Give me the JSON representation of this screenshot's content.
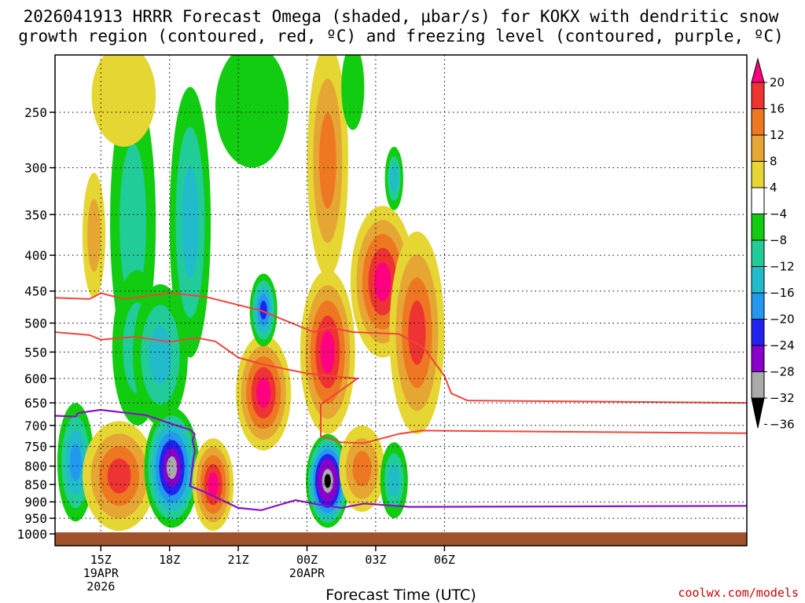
{
  "title_line1": "2026041913 HRRR Forecast Omega (shaded, μbar/s) for KOKX with dendritic snow",
  "title_line2": "growth region (contoured, red, ºC) and freezing level (contoured, purple, ºC)",
  "xlabel": "Forecast Time (UTC)",
  "credit": "coolwx.com/models",
  "colors": {
    "dendritic": "#f0443a",
    "freezing": "#8b10c8",
    "ground": "#a0522d"
  },
  "chart_data": {
    "type": "heatmap",
    "y_axis": {
      "label": "",
      "scale": "log-pressure",
      "units": "mb",
      "range": [
        1000,
        200
      ],
      "ticks": [
        250,
        300,
        350,
        400,
        450,
        500,
        550,
        600,
        650,
        700,
        750,
        800,
        850,
        900,
        950,
        1000
      ],
      "grid": true
    },
    "x_axis": {
      "label": "Forecast Time (UTC)",
      "range_hours_utc": [
        13.0,
        43.2
      ],
      "ticks": [
        {
          "hour": 15,
          "label": "15Z",
          "sub1": "19APR",
          "sub2": "2026"
        },
        {
          "hour": 18,
          "label": "18Z",
          "sub1": "",
          "sub2": ""
        },
        {
          "hour": 21,
          "label": "21Z",
          "sub1": "",
          "sub2": ""
        },
        {
          "hour": 24,
          "label": "00Z",
          "sub1": "20APR",
          "sub2": ""
        },
        {
          "hour": 27,
          "label": "03Z",
          "sub1": "",
          "sub2": ""
        },
        {
          "hour": 30,
          "label": "06Z",
          "sub1": "",
          "sub2": ""
        }
      ],
      "grid": true
    },
    "colorbar": {
      "labels": [
        "20",
        "16",
        "12",
        "8",
        "4",
        "−4",
        "−8",
        "−12",
        "−16",
        "−20",
        "−24",
        "−28",
        "−32",
        "−36"
      ],
      "colors": [
        "#ff0080",
        "#ee3333",
        "#ee7722",
        "#e6a633",
        "#e6d633",
        "#ffffff",
        "#11cc11",
        "#22cc99",
        "#22bbcc",
        "#2299ee",
        "#2222ee",
        "#8800cc",
        "#aaaaaa",
        "#000000"
      ]
    },
    "omega_blobs": [
      {
        "x": 13.9,
        "p": 835,
        "rx": 0.8,
        "hp": [
          650,
          960
        ],
        "levels": [
          -4,
          -8,
          -12,
          -16
        ]
      },
      {
        "x": 14.7,
        "p": 385,
        "rx": 0.5,
        "hp": [
          305,
          460
        ],
        "levels": [
          4,
          8
        ]
      },
      {
        "x": 15.8,
        "p": 810,
        "rx": 1.6,
        "hp": [
          690,
          990
        ],
        "levels": [
          4,
          8,
          12,
          16
        ]
      },
      {
        "x": 16.4,
        "p": 360,
        "rx": 1.0,
        "hp": [
          230,
          560
        ],
        "levels": [
          -4,
          -8
        ]
      },
      {
        "x": 16.6,
        "p": 600,
        "rx": 1.1,
        "hp": [
          420,
          700
        ],
        "levels": [
          -4,
          -8
        ]
      },
      {
        "x": 17.6,
        "p": 560,
        "rx": 1.2,
        "hp": [
          440,
          700
        ],
        "levels": [
          -4,
          -8,
          -12
        ]
      },
      {
        "x": 18.1,
        "p": 790,
        "rx": 1.2,
        "hp": [
          660,
          980
        ],
        "levels": [
          -4,
          -8,
          -12,
          -16,
          -20,
          -28,
          -32
        ]
      },
      {
        "x": 18.9,
        "p": 400,
        "rx": 0.9,
        "hp": [
          230,
          560
        ],
        "levels": [
          -4,
          -8,
          -12
        ]
      },
      {
        "x": 16.0,
        "p": 228,
        "rx": 1.4,
        "hp": [
          200,
          280
        ],
        "levels": [
          4
        ]
      },
      {
        "x": 19.9,
        "p": 840,
        "rx": 0.9,
        "hp": [
          730,
          990
        ],
        "levels": [
          4,
          8,
          12,
          16,
          20
        ]
      },
      {
        "x": 21.6,
        "p": 225,
        "rx": 1.6,
        "hp": [
          200,
          300
        ],
        "levels": [
          -4
        ]
      },
      {
        "x": 22.1,
        "p": 630,
        "rx": 1.2,
        "hp": [
          520,
          760
        ],
        "levels": [
          4,
          8,
          12,
          16,
          20
        ]
      },
      {
        "x": 22.1,
        "p": 480,
        "rx": 0.6,
        "hp": [
          425,
          540
        ],
        "levels": [
          -4,
          -8,
          -12,
          -16,
          -20
        ]
      },
      {
        "x": 24.9,
        "p": 300,
        "rx": 0.9,
        "hp": [
          200,
          430
        ],
        "levels": [
          4,
          8,
          12
        ]
      },
      {
        "x": 24.9,
        "p": 560,
        "rx": 1.2,
        "hp": [
          420,
          720
        ],
        "levels": [
          4,
          8,
          12,
          16,
          20
        ]
      },
      {
        "x": 24.9,
        "p": 835,
        "rx": 0.95,
        "hp": [
          720,
          980
        ],
        "levels": [
          -4,
          -8,
          -12,
          -16,
          -20,
          -24,
          -28,
          -32,
          -36
        ]
      },
      {
        "x": 26.0,
        "p": 225,
        "rx": 0.5,
        "hp": [
          200,
          265
        ],
        "levels": [
          -4
        ]
      },
      {
        "x": 26.4,
        "p": 800,
        "rx": 1.0,
        "hp": [
          700,
          930
        ],
        "levels": [
          4,
          8,
          12
        ]
      },
      {
        "x": 27.3,
        "p": 430,
        "rx": 1.4,
        "hp": [
          340,
          560
        ],
        "levels": [
          4,
          8,
          12,
          16,
          20
        ]
      },
      {
        "x": 28.8,
        "p": 470,
        "rx": 1.2,
        "hp": [
          370,
          720
        ],
        "levels": [
          4,
          8,
          12,
          16
        ]
      },
      {
        "x": 27.8,
        "p": 310,
        "rx": 0.4,
        "hp": [
          280,
          345
        ],
        "levels": [
          -4,
          -8,
          -12
        ]
      },
      {
        "x": 27.8,
        "p": 840,
        "rx": 0.6,
        "hp": [
          740,
          950
        ],
        "levels": [
          -4,
          -8,
          -12
        ]
      }
    ],
    "dendritic_upper": [
      [
        13.0,
        460
      ],
      [
        14.5,
        462
      ],
      [
        15.0,
        453
      ],
      [
        16.0,
        462
      ],
      [
        18.0,
        453
      ],
      [
        19.5,
        458
      ],
      [
        22.0,
        480
      ],
      [
        23.0,
        495
      ],
      [
        24.3,
        515
      ],
      [
        25.0,
        507
      ],
      [
        26.0,
        515
      ],
      [
        28.0,
        518
      ],
      [
        29.0,
        540
      ],
      [
        29.2,
        548
      ]
    ],
    "dendritic_lower": [
      [
        13.0,
        515
      ],
      [
        14.5,
        520
      ],
      [
        15.0,
        528
      ],
      [
        16.5,
        523
      ],
      [
        18.0,
        532
      ],
      [
        19.2,
        525
      ],
      [
        20.0,
        531
      ],
      [
        21.0,
        560
      ],
      [
        22.0,
        572
      ],
      [
        24.0,
        590
      ],
      [
        25.0,
        595
      ],
      [
        26.2,
        600
      ],
      [
        25.0,
        640
      ],
      [
        24.6,
        653
      ],
      [
        24.6,
        725
      ],
      [
        25.5,
        740
      ],
      [
        26.5,
        742
      ],
      [
        28.0,
        720
      ],
      [
        29.0,
        712
      ],
      [
        43.2,
        718
      ]
    ],
    "dendritic_right_upper": [
      [
        29.2,
        548
      ],
      [
        30.0,
        595
      ],
      [
        30.3,
        630
      ],
      [
        31.0,
        645
      ],
      [
        43.2,
        650
      ]
    ],
    "freezing_level": [
      [
        13.0,
        678
      ],
      [
        13.9,
        680
      ],
      [
        14.0,
        672
      ],
      [
        15.0,
        665
      ],
      [
        17.0,
        677
      ],
      [
        18.0,
        695
      ],
      [
        18.9,
        710
      ],
      [
        19.1,
        720
      ],
      [
        19.0,
        735
      ],
      [
        19.1,
        760
      ],
      [
        19.0,
        800
      ],
      [
        18.9,
        855
      ],
      [
        19.5,
        870
      ],
      [
        21.0,
        918
      ],
      [
        22.0,
        925
      ],
      [
        23.5,
        895
      ],
      [
        24.5,
        908
      ],
      [
        25.5,
        918
      ],
      [
        26.5,
        905
      ],
      [
        27.5,
        910
      ],
      [
        28.5,
        915
      ],
      [
        43.2,
        912
      ]
    ]
  }
}
